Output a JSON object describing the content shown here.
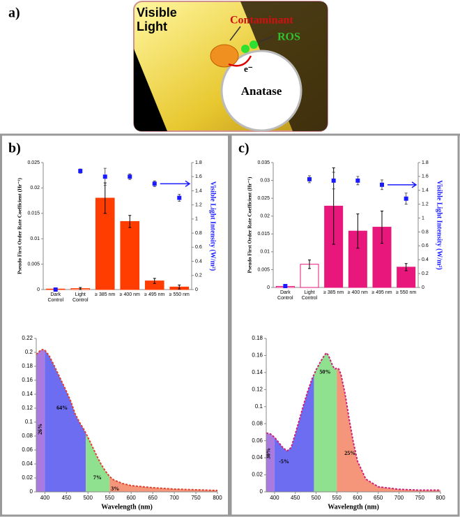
{
  "diagram": {
    "label": "a)",
    "visible_light": "Visible Light",
    "contaminant": "Contaminant",
    "ros": "ROS",
    "electron": "e⁻",
    "anatase": "Anatase"
  },
  "chart_data": [
    {
      "type": "bar",
      "label": "b)",
      "categories": [
        "Dark Control",
        "Light Control",
        "≥ 385 nm",
        "≥ 400 nm",
        "≥ 495 nm",
        "≥ 550 nm"
      ],
      "series": [
        {
          "values": [
            0.0001,
            0.0002,
            0.018,
            0.0134,
            0.0017,
            0.0005
          ],
          "errors": [
            0.0001,
            0.0002,
            0.003,
            0.0012,
            0.0005,
            0.0004
          ],
          "colors": [
            "#ffffff",
            "#ffffff",
            "#ff3d00",
            "#ff3d00",
            "#ff3d00",
            "#ff3d00"
          ],
          "edge_color": "#ff3d00"
        },
        {
          "axis": "y2",
          "color": "#1a1aff",
          "values": [
            0,
            1.68,
            1.6,
            1.6,
            1.5,
            1.3
          ],
          "errors": [
            0.01,
            0.03,
            0.12,
            0.04,
            0.04,
            0.05
          ]
        }
      ],
      "ylabel": "Pseudo First Order Rate Coefficient (Hr⁻¹)",
      "y2label": "Visible Light Intensity (W/m²)",
      "ylim": [
        0,
        0.025
      ],
      "yticks": [
        0,
        0.005,
        0.01,
        0.015,
        0.02,
        0.025
      ],
      "y2lim": [
        0,
        1.8
      ],
      "y2ticks": [
        0,
        0.2,
        0.4,
        0.6,
        0.8,
        1,
        1.2,
        1.4,
        1.6,
        1.8
      ]
    },
    {
      "type": "bar",
      "label": "c)",
      "categories": [
        "Dark Control",
        "Light Control",
        "≥ 385 nm",
        "≥ 400 nm",
        "≥ 495 nm",
        "≥ 550 nm"
      ],
      "series": [
        {
          "values": [
            0.0003,
            0.0065,
            0.0228,
            0.0158,
            0.0169,
            0.0057
          ],
          "errors": [
            0.0002,
            0.0012,
            0.0107,
            0.0048,
            0.0045,
            0.001
          ],
          "colors": [
            "#ffffff",
            "#ffffff",
            "#e8177b",
            "#e8177b",
            "#e8177b",
            "#e8177b"
          ],
          "edge_color": "#e8177b"
        },
        {
          "axis": "y2",
          "color": "#1a1aff",
          "values": [
            0.02,
            1.56,
            1.54,
            1.54,
            1.48,
            1.28
          ],
          "errors": [
            0.01,
            0.05,
            0.12,
            0.06,
            0.07,
            0.08
          ]
        }
      ],
      "ylabel": "Pseudo First Order Rate Coefficient (Hr⁻¹)",
      "y2label": "Visible Light Intensity (W/m²)",
      "ylim": [
        0,
        0.035
      ],
      "yticks": [
        0,
        0.005,
        0.01,
        0.015,
        0.02,
        0.025,
        0.03,
        0.035
      ],
      "y2lim": [
        0,
        1.8
      ],
      "y2ticks": [
        0,
        0.2,
        0.4,
        0.6,
        0.8,
        1,
        1.2,
        1.4,
        1.6,
        1.8
      ]
    },
    {
      "type": "area",
      "xlabel": "Wavelength (nm)",
      "color": "#e0402a",
      "x": [
        380,
        385,
        390,
        395,
        400,
        410,
        420,
        430,
        440,
        450,
        460,
        470,
        480,
        490,
        500,
        510,
        520,
        530,
        540,
        550,
        560,
        580,
        600,
        650,
        700,
        750,
        800
      ],
      "values": [
        0.197,
        0.2,
        0.203,
        0.204,
        0.203,
        0.195,
        0.183,
        0.17,
        0.157,
        0.144,
        0.13,
        0.112,
        0.1,
        0.09,
        0.078,
        0.065,
        0.052,
        0.04,
        0.03,
        0.022,
        0.017,
        0.012,
        0.009,
        0.006,
        0.004,
        0.003,
        0.002
      ],
      "regions": [
        {
          "start": 380,
          "end": 400,
          "color": "#a97be0",
          "label": "26%"
        },
        {
          "start": 400,
          "end": 495,
          "color": "#6d6df2",
          "label": "64%"
        },
        {
          "start": 495,
          "end": 550,
          "color": "#8fe08f",
          "label": "7%"
        },
        {
          "start": 550,
          "end": 800,
          "color": "#f5957a",
          "label": "3%"
        }
      ],
      "xlim": [
        380,
        800
      ],
      "xticks": [
        400,
        450,
        500,
        550,
        600,
        650,
        700,
        750,
        800
      ],
      "ylim": [
        0,
        0.22
      ],
      "yticks": [
        0,
        0.02,
        0.04,
        0.06,
        0.08,
        0.1,
        0.12,
        0.14,
        0.16,
        0.18,
        0.2,
        0.22
      ]
    },
    {
      "type": "area",
      "xlabel": "Wavelength (nm)",
      "color": "#d0207a",
      "x": [
        380,
        390,
        400,
        410,
        420,
        430,
        440,
        450,
        460,
        470,
        480,
        490,
        500,
        510,
        520,
        525,
        530,
        540,
        545,
        550,
        555,
        560,
        570,
        580,
        590,
        600,
        620,
        650,
        700,
        750,
        800
      ],
      "values": [
        0.069,
        0.068,
        0.064,
        0.058,
        0.052,
        0.048,
        0.052,
        0.068,
        0.085,
        0.102,
        0.118,
        0.132,
        0.143,
        0.152,
        0.16,
        0.163,
        0.16,
        0.148,
        0.144,
        0.145,
        0.144,
        0.138,
        0.115,
        0.085,
        0.058,
        0.036,
        0.015,
        0.006,
        0.003,
        0.002,
        0.002
      ],
      "regions": [
        {
          "start": 380,
          "end": 400,
          "color": "#a97be0",
          "label": "30%"
        },
        {
          "start": 400,
          "end": 495,
          "color": "#6d6df2",
          "label": "-5%"
        },
        {
          "start": 495,
          "end": 550,
          "color": "#8fe08f",
          "label": "50%"
        },
        {
          "start": 550,
          "end": 800,
          "color": "#f5957a",
          "label": "25%"
        }
      ],
      "xlim": [
        380,
        800
      ],
      "xticks": [
        400,
        450,
        500,
        550,
        600,
        650,
        700,
        750,
        800
      ],
      "ylim": [
        0,
        0.18
      ],
      "yticks": [
        0,
        0.02,
        0.04,
        0.06,
        0.08,
        0.1,
        0.12,
        0.14,
        0.16,
        0.18
      ]
    }
  ]
}
